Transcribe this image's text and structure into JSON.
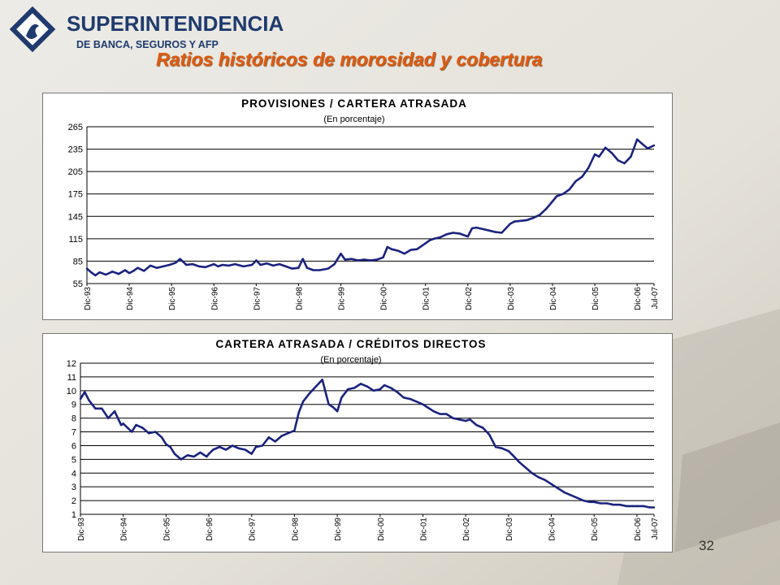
{
  "header": {
    "logo_line1": "SUPERINTENDENCIA",
    "logo_line2": "DE BANCA, SEGUROS Y AFP",
    "page_title": "Ratios históricos de morosidad y cobertura"
  },
  "footer": {
    "page_number": "32"
  },
  "colors": {
    "line": "#1a237e",
    "title": "#e05a10",
    "logo": "#1f3a6e"
  },
  "chart_data": [
    {
      "type": "line",
      "title": "PROVISIONES / CARTERA ATRASADA",
      "subtitle": "(En porcentaje)",
      "ylim": [
        55,
        265
      ],
      "yticks": [
        55,
        85,
        115,
        145,
        175,
        205,
        235,
        265
      ],
      "xlim": [
        0,
        13.4
      ],
      "xtick_positions": [
        0,
        1,
        2,
        3,
        4,
        5,
        6,
        7,
        8,
        9,
        10,
        11,
        12,
        13,
        13.4
      ],
      "xtick_labels": [
        "Dic-93",
        "Dic-94",
        "Dic-95",
        "Dic-96",
        "Dic-97",
        "Dic-98",
        "Dic-99",
        "Dic-00",
        "Dic-01",
        "Dic-02",
        "Dic-03",
        "Dic-04",
        "Dic-05",
        "Dic-06",
        "Jul-07"
      ],
      "grid": "horizontal",
      "series": [
        {
          "x": [
            0,
            0.1,
            0.2,
            0.3,
            0.45,
            0.6,
            0.75,
            0.9,
            1.0,
            1.1,
            1.2,
            1.35,
            1.5,
            1.65,
            1.8,
            1.95,
            2.1,
            2.2,
            2.35,
            2.5,
            2.65,
            2.8,
            3.0,
            3.1,
            3.2,
            3.35,
            3.5,
            3.7,
            3.9,
            4.0,
            4.1,
            4.25,
            4.4,
            4.55,
            4.7,
            4.85,
            5.0,
            5.1,
            5.2,
            5.35,
            5.5,
            5.7,
            5.85,
            6.0,
            6.1,
            6.25,
            6.4,
            6.55,
            6.7,
            6.85,
            7.0,
            7.1,
            7.2,
            7.35,
            7.5,
            7.65,
            7.8,
            8.0,
            8.1,
            8.2,
            8.35,
            8.5,
            8.65,
            8.8,
            9.0,
            9.1,
            9.2,
            9.35,
            9.5,
            9.65,
            9.8,
            10.0,
            10.1,
            10.25,
            10.4,
            10.55,
            10.7,
            10.85,
            11.0,
            11.1,
            11.25,
            11.4,
            11.55,
            11.7,
            11.85,
            12.0,
            12.1,
            12.25,
            12.4,
            12.55,
            12.7,
            12.85,
            13.0,
            13.1,
            13.25,
            13.4
          ],
          "values": [
            75,
            70,
            66,
            70,
            67,
            71,
            68,
            73,
            69,
            72,
            76,
            72,
            79,
            76,
            78,
            80,
            83,
            88,
            80,
            81,
            78,
            77,
            81,
            78,
            80,
            79,
            81,
            78,
            80,
            86,
            80,
            82,
            79,
            81,
            78,
            75,
            76,
            88,
            76,
            73,
            73,
            75,
            81,
            95,
            87,
            88,
            86,
            87,
            86,
            87,
            90,
            104,
            101,
            99,
            95,
            100,
            101,
            109,
            113,
            115,
            117,
            121,
            123,
            122,
            118,
            129,
            130,
            128,
            126,
            124,
            123,
            135,
            138,
            139,
            140,
            143,
            147,
            155,
            165,
            172,
            175,
            181,
            192,
            198,
            210,
            228,
            225,
            237,
            230,
            220,
            216,
            225,
            248,
            243,
            236,
            240
          ]
        }
      ]
    },
    {
      "type": "line",
      "title": "CARTERA ATRASADA / CRÉDITOS DIRECTOS",
      "subtitle": "(En porcentaje)",
      "ylim": [
        1,
        12
      ],
      "yticks": [
        1,
        2,
        3,
        4,
        5,
        6,
        7,
        8,
        9,
        10,
        11,
        12
      ],
      "xlim": [
        0,
        13.4
      ],
      "xtick_positions": [
        0,
        1,
        2,
        3,
        4,
        5,
        6,
        7,
        8,
        9,
        10,
        11,
        12,
        13,
        13.4
      ],
      "xtick_labels": [
        "Dic-93",
        "Dic-94",
        "Dic-95",
        "Dic-96",
        "Dic-97",
        "Dic-98",
        "Dic-99",
        "Dic-00",
        "Dic-01",
        "Dic-02",
        "Dic-03",
        "Dic-04",
        "Dic-05",
        "Dic-06",
        "Jul-07"
      ],
      "grid": "horizontal",
      "series": [
        {
          "x": [
            0,
            0.1,
            0.2,
            0.35,
            0.5,
            0.65,
            0.8,
            0.95,
            1.0,
            1.1,
            1.2,
            1.3,
            1.45,
            1.6,
            1.75,
            1.9,
            2.0,
            2.1,
            2.2,
            2.35,
            2.5,
            2.65,
            2.8,
            2.95,
            3.0,
            3.1,
            3.25,
            3.4,
            3.55,
            3.7,
            3.85,
            4.0,
            4.1,
            4.25,
            4.4,
            4.55,
            4.7,
            4.85,
            5.0,
            5.1,
            5.2,
            5.35,
            5.5,
            5.65,
            5.8,
            5.9,
            6.0,
            6.1,
            6.25,
            6.4,
            6.55,
            6.7,
            6.85,
            7.0,
            7.1,
            7.25,
            7.4,
            7.55,
            7.7,
            7.85,
            8.0,
            8.1,
            8.25,
            8.4,
            8.55,
            8.7,
            8.85,
            9.0,
            9.1,
            9.25,
            9.4,
            9.55,
            9.7,
            9.85,
            10.0,
            10.1,
            10.25,
            10.4,
            10.55,
            10.7,
            10.85,
            11.0,
            11.15,
            11.3,
            11.45,
            11.6,
            11.75,
            11.9,
            12.0,
            12.15,
            12.3,
            12.45,
            12.6,
            12.75,
            12.9,
            13.0,
            13.15,
            13.3,
            13.4
          ],
          "values": [
            9.4,
            9.9,
            9.3,
            8.7,
            8.7,
            8.0,
            8.5,
            7.5,
            7.6,
            7.3,
            7.0,
            7.5,
            7.3,
            6.9,
            7.0,
            6.6,
            6.1,
            5.9,
            5.4,
            5.0,
            5.3,
            5.2,
            5.5,
            5.2,
            5.4,
            5.7,
            5.9,
            5.7,
            6.0,
            5.8,
            5.7,
            5.4,
            5.9,
            6.0,
            6.6,
            6.3,
            6.7,
            6.9,
            7.1,
            8.4,
            9.2,
            9.8,
            10.3,
            10.8,
            9.0,
            8.8,
            8.5,
            9.5,
            10.1,
            10.2,
            10.5,
            10.3,
            10.0,
            10.1,
            10.4,
            10.2,
            9.9,
            9.5,
            9.4,
            9.2,
            9.0,
            8.8,
            8.5,
            8.3,
            8.3,
            8.0,
            7.9,
            7.8,
            7.9,
            7.5,
            7.3,
            6.8,
            5.9,
            5.8,
            5.6,
            5.3,
            4.8,
            4.4,
            4.0,
            3.7,
            3.5,
            3.2,
            2.9,
            2.6,
            2.4,
            2.2,
            2.0,
            1.9,
            1.9,
            1.8,
            1.8,
            1.7,
            1.7,
            1.6,
            1.6,
            1.6,
            1.6,
            1.5,
            1.5
          ]
        }
      ]
    }
  ]
}
